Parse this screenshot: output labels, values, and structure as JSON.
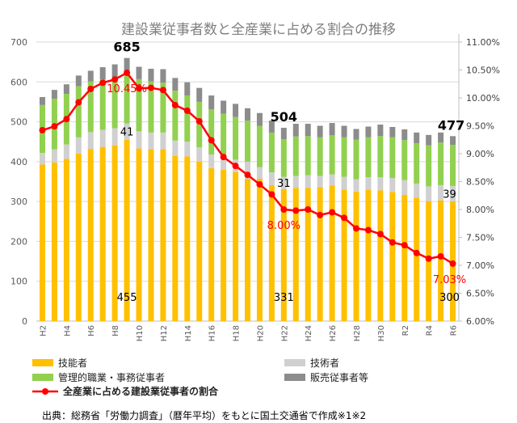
{
  "chart_data": {
    "type": "bar",
    "title": "建設業従事者数と全産業に占める割合の推移",
    "categories": [
      "H2",
      "H3",
      "H4",
      "H5",
      "H6",
      "H7",
      "H8",
      "H9",
      "H10",
      "H11",
      "H12",
      "H13",
      "H14",
      "H15",
      "H16",
      "H17",
      "H18",
      "H19",
      "H20",
      "H21",
      "H22",
      "H23",
      "H24",
      "H25",
      "H26",
      "H27",
      "H28",
      "H29",
      "H30",
      "H31",
      "R2",
      "R3",
      "R4",
      "R5",
      "R6"
    ],
    "x_tick_labels": [
      "H2",
      "H4",
      "H6",
      "H8",
      "H10",
      "H12",
      "H14",
      "H16",
      "H18",
      "H20",
      "H22",
      "H24",
      "H26",
      "H28",
      "H30",
      "R2",
      "R4",
      "R6"
    ],
    "stacked": true,
    "series": [
      {
        "name": "技能者",
        "color": "#ffc000",
        "values": [
          393,
          398,
          407,
          420,
          432,
          437,
          441,
          455,
          433,
          431,
          431,
          414,
          413,
          400,
          384,
          380,
          374,
          357,
          357,
          341,
          331,
          334,
          334,
          336,
          340,
          330,
          325,
          330,
          328,
          324,
          317,
          310,
          301,
          303,
          300
        ]
      },
      {
        "name": "技術者",
        "color": "#d0d0d0",
        "values": [
          29,
          33,
          36,
          41,
          42,
          43,
          43,
          41,
          43,
          42,
          42,
          39,
          37,
          36,
          34,
          27,
          31,
          43,
          29,
          32,
          31,
          30,
          32,
          28,
          28,
          32,
          31,
          31,
          33,
          35,
          37,
          35,
          37,
          38,
          39
        ]
      },
      {
        "name": "管理的職業・事務従事者",
        "color": "#92d050",
        "values": [
          120,
          127,
          127,
          128,
          127,
          126,
          122,
          125,
          131,
          128,
          125,
          125,
          116,
          114,
          113,
          113,
          107,
          103,
          104,
          100,
          94,
          99,
          98,
          97,
          98,
          99,
          99,
          100,
          103,
          102,
          100,
          101,
          103,
          107,
          103
        ]
      },
      {
        "name": "販売従事者等",
        "color": "#8c8c8c",
        "values": [
          20,
          22,
          24,
          27,
          27,
          31,
          38,
          39,
          31,
          32,
          34,
          32,
          33,
          35,
          35,
          33,
          33,
          31,
          32,
          30,
          29,
          32,
          31,
          29,
          31,
          29,
          27,
          27,
          29,
          26,
          27,
          27,
          26,
          25,
          22
        ]
      }
    ],
    "line_series": {
      "name": "全産業に占める建設業従事者の割合",
      "color": "#ff0000",
      "axis": "right",
      "values": [
        9.42,
        9.49,
        9.62,
        9.92,
        10.16,
        10.27,
        10.33,
        10.45,
        10.17,
        10.18,
        10.14,
        9.87,
        9.77,
        9.58,
        9.24,
        8.94,
        8.78,
        8.62,
        8.45,
        8.27,
        8.0,
        7.98,
        8.0,
        7.9,
        7.95,
        7.85,
        7.66,
        7.63,
        7.56,
        7.41,
        7.36,
        7.22,
        7.12,
        7.16,
        7.03
      ]
    },
    "ylim_left": [
      0,
      700
    ],
    "yticks_left": [
      "0",
      "100",
      "200",
      "300",
      "400",
      "500",
      "600",
      "700"
    ],
    "ylim_right": [
      6.0,
      11.0
    ],
    "yticks_right": [
      "6.00%",
      "6.50%",
      "7.00%",
      "7.50%",
      "8.00%",
      "8.50%",
      "9.00%",
      "9.50%",
      "10.00%",
      "10.50%",
      "11.00%"
    ],
    "grid": true,
    "legend_placement": "bottom",
    "annotations": [
      {
        "category": "H9",
        "text": "685",
        "kind": "total",
        "bold": true
      },
      {
        "category": "H9",
        "text": "41",
        "kind": "technical"
      },
      {
        "category": "H9",
        "text": "455",
        "kind": "skilled"
      },
      {
        "category": "H9",
        "text": "10.45%",
        "kind": "ratio"
      },
      {
        "category": "H22",
        "text": "504",
        "kind": "total",
        "bold": true
      },
      {
        "category": "H22",
        "text": "31",
        "kind": "technical"
      },
      {
        "category": "H22",
        "text": "331",
        "kind": "skilled"
      },
      {
        "category": "H22",
        "text": "8.00%",
        "kind": "ratio"
      },
      {
        "category": "R6",
        "text": "477",
        "kind": "total",
        "bold": true
      },
      {
        "category": "R6",
        "text": "39",
        "kind": "technical"
      },
      {
        "category": "R6",
        "text": "300",
        "kind": "skilled"
      },
      {
        "category": "R6",
        "text": "7.03%",
        "kind": "ratio"
      }
    ]
  },
  "legend": {
    "skilled": "技能者",
    "technical": "技術者",
    "management": "管理的職業・事務従事者",
    "sales": "販売従事者等",
    "ratio": "全産業に占める建設業従事者の割合"
  },
  "footnote": "出典：総務省「労働力調査」（暦年平均）をもとに国土交通省で作成※1※2"
}
